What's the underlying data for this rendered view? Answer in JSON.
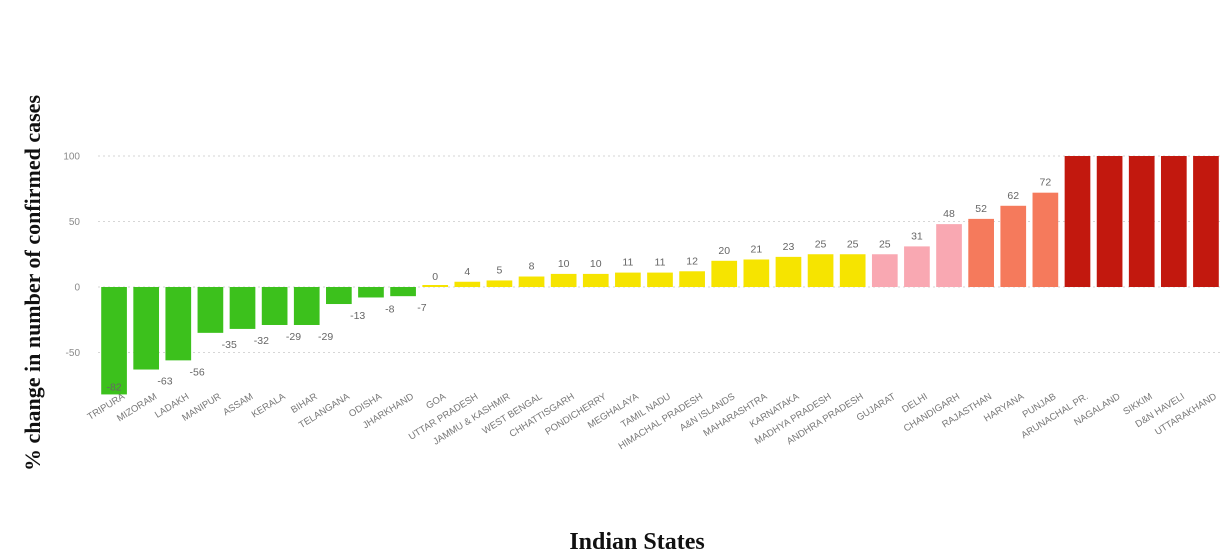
{
  "chart_data": {
    "type": "bar",
    "xlabel": "Indian States",
    "ylabel": "% change in number of confirmed cases",
    "ylim": [
      -80,
      100
    ],
    "yticks": [
      100,
      50,
      0,
      -50
    ],
    "grid": true,
    "legend": "none",
    "categories": [
      "TRIPURA",
      "MIZORAM",
      "LADAKH",
      "MANIPUR",
      "ASSAM",
      "KERALA",
      "BIHAR",
      "TELANGANA",
      "ODISHA",
      "JHARKHAND",
      "GOA",
      "UTTAR PRADESH",
      "JAMMU & KASHMIR",
      "WEST BENGAL",
      "CHHATTISGARH",
      "PONDICHERRY",
      "MEGHALAYA",
      "TAMIL NADU",
      "HIMACHAL PRADESH",
      "A&N ISLANDS",
      "MAHARASHTRA",
      "KARNATAKA",
      "MADHYA PRADESH",
      "ANDHRA PRADESH",
      "GUJARAT",
      "DELHI",
      "CHANDIGARH",
      "RAJASTHAN",
      "HARYANA",
      "PUNJAB",
      "ARUNACHAL PR.",
      "NAGALAND",
      "SIKKIM",
      "D&N HAVELI",
      "UTTARAKHAND"
    ],
    "values": [
      -82,
      -63,
      -56,
      -35,
      -32,
      -29,
      -29,
      -13,
      -8,
      -7,
      0,
      4,
      5,
      8,
      10,
      10,
      11,
      11,
      12,
      20,
      21,
      23,
      25,
      25,
      25,
      31,
      48,
      52,
      62,
      72,
      100,
      100,
      100,
      100,
      100
    ],
    "data_labels": [
      "-82",
      "-63",
      "-56",
      "-35",
      "-32",
      "-29",
      "-29",
      "-13",
      "-8",
      "-7",
      "0",
      "4",
      "5",
      "8",
      "10",
      "10",
      "11",
      "11",
      "12",
      "20",
      "21",
      "23",
      "25",
      "25",
      "25",
      "31",
      "48",
      "52",
      "62",
      "72",
      "",
      "",
      "",
      "",
      ""
    ],
    "colors": [
      "#3cc11c",
      "#3cc11c",
      "#3cc11c",
      "#3cc11c",
      "#3cc11c",
      "#3cc11c",
      "#3cc11c",
      "#3cc11c",
      "#3cc11c",
      "#3cc11c",
      "#f6e400",
      "#f6e400",
      "#f6e400",
      "#f6e400",
      "#f6e400",
      "#f6e400",
      "#f6e400",
      "#f6e400",
      "#f6e400",
      "#f6e400",
      "#f6e400",
      "#f6e400",
      "#f6e400",
      "#f6e400",
      "#f9a8b2",
      "#f9a8b2",
      "#f9a8b2",
      "#f57a5c",
      "#f57a5c",
      "#f57a5c",
      "#c2180e",
      "#c2180e",
      "#c2180e",
      "#c2180e",
      "#c2180e"
    ]
  }
}
